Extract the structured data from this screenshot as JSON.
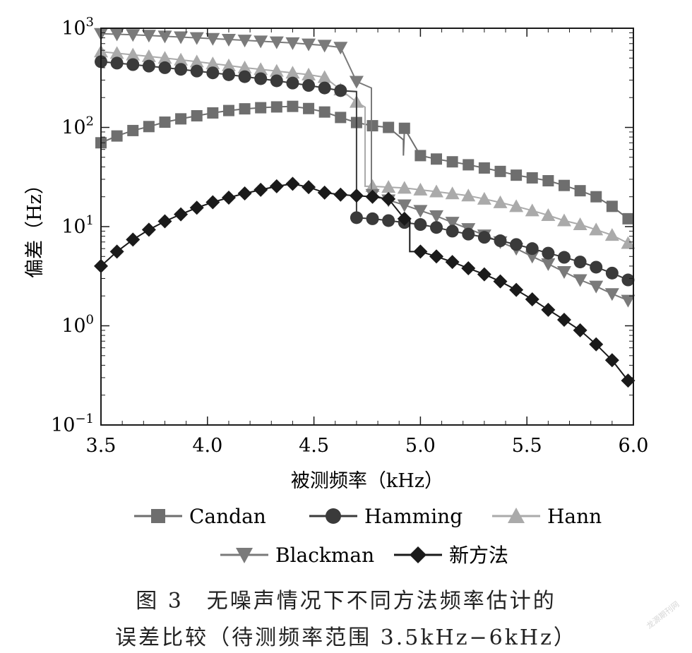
{
  "chart_data": {
    "type": "line",
    "xlabel": "被测频率（kHz）",
    "ylabel": "偏差（Hz）",
    "xlim": [
      3.5,
      6.0
    ],
    "ylim": [
      0.1,
      1000
    ],
    "yscale": "log",
    "xticks": [
      "3.5",
      "4.0",
      "4.5",
      "5.0",
      "5.5",
      "6.0"
    ],
    "yticks": [
      {
        "base": "10",
        "exp": "−1"
      },
      {
        "base": "10",
        "exp": "0"
      },
      {
        "base": "10",
        "exp": "1"
      },
      {
        "base": "10",
        "exp": "2"
      },
      {
        "base": "10",
        "exp": "3"
      }
    ],
    "grid": false,
    "legend_position": "bottom",
    "series": [
      {
        "name": "Candan",
        "marker": "square",
        "color": "#6e6e6e",
        "x": [
          3.5,
          3.575,
          3.65,
          3.725,
          3.8,
          3.875,
          3.95,
          4.025,
          4.1,
          4.175,
          4.25,
          4.325,
          4.4,
          4.475,
          4.55,
          4.625,
          4.7,
          4.775,
          4.85,
          4.925,
          5.0,
          5.075,
          5.15,
          5.225,
          5.3,
          5.375,
          5.45,
          5.525,
          5.6,
          5.675,
          5.75,
          5.825,
          5.9,
          5.975
        ],
        "y": [
          70,
          82,
          93,
          102,
          113,
          122,
          131,
          140,
          148,
          154,
          158,
          161,
          163,
          155,
          143,
          126,
          112,
          104,
          100,
          98,
          52,
          48,
          45,
          42,
          39,
          36,
          33,
          31,
          29,
          26,
          23,
          20,
          16,
          12
        ],
        "step": {
          "x": 4.92,
          "y_before": 75,
          "y_after": 52
        }
      },
      {
        "name": "Hamming",
        "marker": "circle",
        "color": "#3a3a3a",
        "x": [
          3.5,
          3.575,
          3.65,
          3.725,
          3.8,
          3.875,
          3.95,
          4.025,
          4.1,
          4.175,
          4.25,
          4.325,
          4.4,
          4.475,
          4.55,
          4.625,
          4.7,
          4.775,
          4.85,
          4.925,
          5.0,
          5.075,
          5.15,
          5.225,
          5.3,
          5.375,
          5.45,
          5.525,
          5.6,
          5.675,
          5.75,
          5.825,
          5.9,
          5.975
        ],
        "y": [
          460,
          445,
          430,
          415,
          400,
          385,
          370,
          355,
          340,
          325,
          310,
          295,
          280,
          265,
          250,
          235,
          12.3,
          12.0,
          11.5,
          11.0,
          10.5,
          9.8,
          9.0,
          8.4,
          7.8,
          7.2,
          6.6,
          6.0,
          5.4,
          4.9,
          4.4,
          3.9,
          3.4,
          2.9
        ],
        "step": {
          "x": 4.7,
          "y_before": 230,
          "y_after": 12.3
        }
      },
      {
        "name": "Hann",
        "marker": "triangle-up",
        "color": "#aaaaaa",
        "x": [
          3.5,
          3.575,
          3.65,
          3.725,
          3.8,
          3.875,
          3.95,
          4.025,
          4.1,
          4.175,
          4.25,
          4.325,
          4.4,
          4.475,
          4.55,
          4.625,
          4.7,
          4.775,
          4.85,
          4.925,
          5.0,
          5.075,
          5.15,
          5.225,
          5.3,
          5.375,
          5.45,
          5.525,
          5.6,
          5.675,
          5.75,
          5.825,
          5.9,
          5.975
        ],
        "y": [
          580,
          560,
          540,
          520,
          500,
          480,
          460,
          440,
          420,
          400,
          385,
          370,
          355,
          340,
          320,
          240,
          180,
          25.5,
          25.0,
          24.5,
          23.5,
          22.5,
          21.5,
          20.5,
          19.0,
          17.5,
          16.0,
          14.5,
          13.0,
          11.5,
          10.5,
          9.3,
          8.2,
          6.8
        ],
        "step": {
          "x": 4.74,
          "y_before": 160,
          "y_after": 25.5
        }
      },
      {
        "name": "Blackman",
        "marker": "triangle-down",
        "color": "#7a7a7a",
        "x": [
          3.5,
          3.575,
          3.65,
          3.725,
          3.8,
          3.875,
          3.95,
          4.025,
          4.1,
          4.175,
          4.25,
          4.325,
          4.4,
          4.475,
          4.55,
          4.625,
          4.7,
          4.775,
          4.85,
          4.925,
          5.0,
          5.075,
          5.15,
          5.225,
          5.3,
          5.375,
          5.45,
          5.525,
          5.6,
          5.675,
          5.75,
          5.825,
          5.9,
          5.975
        ],
        "y": [
          880,
          870,
          860,
          845,
          830,
          815,
          800,
          785,
          770,
          755,
          740,
          725,
          710,
          690,
          670,
          640,
          290,
          21.0,
          18.5,
          16.5,
          14.5,
          12.8,
          11.0,
          9.5,
          8.2,
          7.0,
          6.0,
          5.0,
          4.2,
          3.5,
          2.9,
          2.5,
          2.1,
          1.8
        ],
        "step": {
          "x": 4.77,
          "y_before": 250,
          "y_after": 21.0
        }
      },
      {
        "name": "新方法",
        "marker": "diamond",
        "color": "#1a1a1a",
        "x": [
          3.5,
          3.575,
          3.65,
          3.725,
          3.8,
          3.875,
          3.95,
          4.025,
          4.1,
          4.175,
          4.25,
          4.325,
          4.4,
          4.475,
          4.55,
          4.625,
          4.7,
          4.775,
          4.85,
          4.925,
          5.0,
          5.075,
          5.15,
          5.225,
          5.3,
          5.375,
          5.45,
          5.525,
          5.6,
          5.675,
          5.75,
          5.825,
          5.9,
          5.975
        ],
        "y": [
          4.0,
          5.6,
          7.4,
          9.3,
          11.3,
          13.3,
          15.5,
          17.6,
          19.6,
          21.6,
          23.5,
          25.5,
          27.0,
          25.0,
          22.0,
          21.0,
          20.5,
          20.0,
          19.0,
          12.0,
          5.6,
          5.0,
          4.4,
          3.8,
          3.3,
          2.8,
          2.3,
          1.85,
          1.45,
          1.15,
          0.9,
          0.65,
          0.45,
          0.28
        ],
        "step": {
          "x": 4.95,
          "y_before": 12,
          "y_after": 5.6
        }
      }
    ]
  },
  "caption": {
    "line1": "图 3　无噪声情况下不同方法频率估计的",
    "line2": "误差比较（待测频率范围 3.5kHz−6kHz）"
  },
  "watermark": "龙源期刊网"
}
